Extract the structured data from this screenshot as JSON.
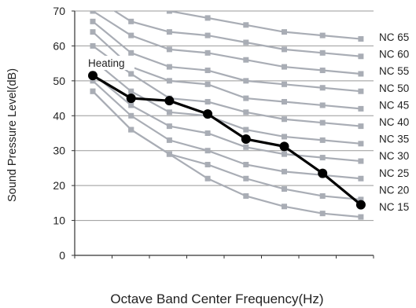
{
  "chart_data": {
    "type": "line",
    "title": "",
    "xlabel": "Octave Band Center Frequency(Hz)",
    "ylabel": "Sound Pressure Level(dB)",
    "ylim": [
      0,
      70
    ],
    "yticks": [
      "0",
      "10",
      "20",
      "30",
      "40",
      "50",
      "60",
      "70"
    ],
    "x": [
      1,
      2,
      3,
      4,
      5,
      6,
      7,
      8
    ],
    "grid": "horizontal",
    "nc_curves": [
      {
        "label": "NC 65",
        "values": [
          77,
          72,
          70,
          68,
          66,
          64,
          63,
          62
        ]
      },
      {
        "label": "NC 60",
        "values": [
          74,
          67,
          64,
          63,
          61,
          59,
          58,
          57
        ]
      },
      {
        "label": "NC 55",
        "values": [
          70,
          63,
          59,
          58,
          56,
          54,
          53,
          52
        ]
      },
      {
        "label": "NC 50",
        "values": [
          67,
          58,
          54,
          53,
          50,
          49,
          48,
          47
        ]
      },
      {
        "label": "NC 45",
        "values": [
          64,
          54,
          50,
          49,
          45,
          44,
          43,
          42
        ]
      },
      {
        "label": "NC 40",
        "values": [
          60,
          52,
          45,
          44,
          41,
          39,
          38,
          37
        ]
      },
      {
        "label": "NC 35",
        "values": [
          56,
          47,
          41,
          40,
          36,
          34,
          33,
          32
        ]
      },
      {
        "label": "NC 30",
        "values": [
          52,
          43,
          37,
          35,
          31,
          29,
          28,
          27
        ]
      },
      {
        "label": "NC 25",
        "values": [
          50,
          40,
          33,
          30,
          26,
          24,
          23,
          22
        ]
      },
      {
        "label": "NC 20",
        "values": [
          47,
          36,
          29,
          26,
          22,
          19,
          17,
          16
        ]
      },
      {
        "label": "NC 15",
        "values": [
          47,
          36,
          29,
          22,
          17,
          14,
          12,
          11
        ]
      }
    ],
    "series": [
      {
        "name": "Heating",
        "values": [
          51.5,
          45,
          44.3,
          40.5,
          33.3,
          31.2,
          23.5,
          14.5
        ]
      }
    ],
    "colors": {
      "nc": "#a9adb5",
      "series": "#000000",
      "grid": "#999999",
      "axis": "#333333"
    }
  }
}
